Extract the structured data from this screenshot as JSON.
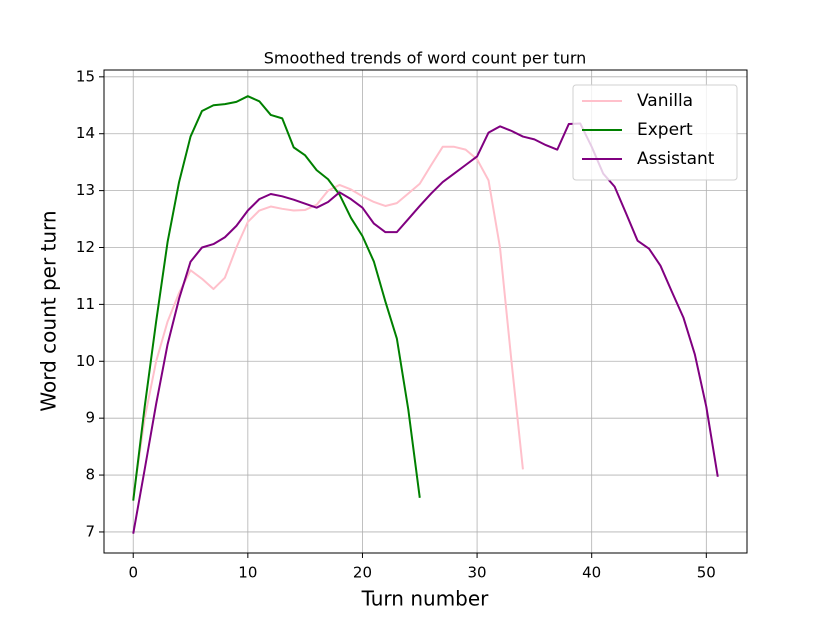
{
  "chart_data": {
    "type": "line",
    "title": "Smoothed trends of word count per turn",
    "x_label": "Turn number",
    "y_label": "Word count per turn",
    "xlim": [
      -2.55,
      53.55
    ],
    "ylim": [
      6.63,
      15.12
    ],
    "xticks": [
      0,
      10,
      20,
      30,
      40,
      50
    ],
    "yticks": [
      7,
      8,
      9,
      10,
      11,
      12,
      13,
      14,
      15
    ],
    "grid": true,
    "legend": "upper right",
    "series": [
      {
        "name": "Vanilla",
        "color": "pink",
        "x": [
          0,
          1,
          2,
          3,
          4,
          5,
          6,
          7,
          8,
          9,
          10,
          11,
          12,
          13,
          14,
          15,
          16,
          17,
          18,
          19,
          20,
          21,
          22,
          23,
          24,
          25,
          26,
          27,
          28,
          29,
          30,
          31,
          32,
          33,
          34
        ],
        "values": [
          7.6,
          9.0,
          10.0,
          10.7,
          11.2,
          11.6,
          11.45,
          11.27,
          11.47,
          12.0,
          12.45,
          12.65,
          12.72,
          12.68,
          12.65,
          12.66,
          12.75,
          13.0,
          13.1,
          13.02,
          12.9,
          12.8,
          12.73,
          12.78,
          12.95,
          13.12,
          13.45,
          13.77,
          13.77,
          13.72,
          13.55,
          13.18,
          12.0,
          10.0,
          8.1
        ]
      },
      {
        "name": "Expert",
        "color": "green",
        "x": [
          0,
          1,
          2,
          3,
          4,
          5,
          6,
          7,
          8,
          9,
          10,
          11,
          12,
          13,
          14,
          15,
          16,
          17,
          18,
          19,
          20,
          21,
          22,
          23,
          24,
          25
        ],
        "values": [
          7.55,
          9.2,
          10.7,
          12.1,
          13.15,
          13.95,
          14.4,
          14.5,
          14.52,
          14.56,
          14.66,
          14.57,
          14.33,
          14.27,
          13.76,
          13.62,
          13.36,
          13.2,
          12.93,
          12.52,
          12.2,
          11.75,
          11.05,
          10.4,
          9.15,
          7.6
        ]
      },
      {
        "name": "Assistant",
        "color": "purple",
        "x": [
          0,
          1,
          2,
          3,
          4,
          5,
          6,
          7,
          8,
          9,
          10,
          11,
          12,
          13,
          14,
          15,
          16,
          17,
          18,
          19,
          20,
          21,
          22,
          23,
          24,
          25,
          26,
          27,
          28,
          29,
          30,
          31,
          32,
          33,
          34,
          35,
          36,
          37,
          38,
          39,
          40,
          41,
          42,
          43,
          44,
          45,
          46,
          47,
          48,
          49,
          50,
          51
        ],
        "values": [
          6.97,
          8.1,
          9.25,
          10.3,
          11.1,
          11.75,
          12.0,
          12.06,
          12.18,
          12.38,
          12.65,
          12.85,
          12.94,
          12.9,
          12.84,
          12.77,
          12.7,
          12.8,
          12.97,
          12.85,
          12.7,
          12.42,
          12.27,
          12.27,
          12.5,
          12.73,
          12.95,
          13.15,
          13.3,
          13.45,
          13.6,
          14.02,
          14.13,
          14.05,
          13.95,
          13.9,
          13.8,
          13.72,
          14.17,
          14.18,
          13.77,
          13.3,
          13.07,
          12.6,
          12.12,
          11.98,
          11.68,
          11.22,
          10.77,
          10.12,
          9.2,
          7.97
        ]
      }
    ]
  }
}
